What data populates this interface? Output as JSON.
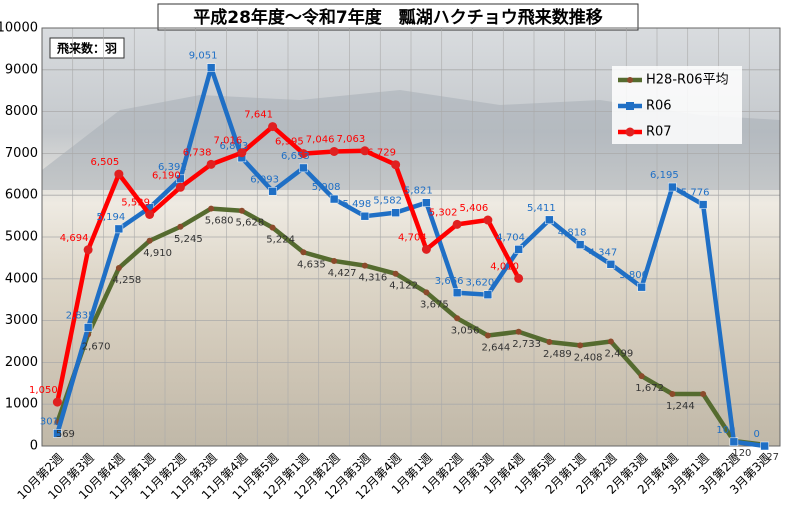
{
  "chart_data": {
    "type": "line",
    "title": "平成28年度～令和7年度　瓢湖ハクチョウ飛来数推移",
    "y_label": "飛来数：羽",
    "categories": [
      "10月第2週",
      "10月第3週",
      "10月第4週",
      "11月第1週",
      "11月第2週",
      "11月第3週",
      "11月第4週",
      "11月第5週",
      "12月第1週",
      "12月第2週",
      "12月第3週",
      "12月第4週",
      "1月第1週",
      "1月第2週",
      "1月第3週",
      "1月第4週",
      "1月第5週",
      "2月第1週",
      "2月第2週",
      "2月第3週",
      "2月第4週",
      "3月第1週",
      "3月第2週",
      "3月第3週"
    ],
    "ylim": [
      0,
      10000
    ],
    "yticks": [
      0,
      1000,
      2000,
      3000,
      4000,
      5000,
      6000,
      7000,
      8000,
      9000,
      10000
    ],
    "grid": true,
    "legend": "upper right",
    "series": [
      {
        "name": "H28-R06平均",
        "color": "#556b2f",
        "marker_color": "#8b4a2b",
        "values": [
          569,
          2670,
          4258,
          4910,
          5245,
          5680,
          5628,
          5224,
          4635,
          4427,
          4316,
          4122,
          3675,
          3056,
          2644,
          2733,
          2489,
          2408,
          2499,
          1672,
          1244,
          1244,
          120,
          27
        ],
        "value_labels": [
          "569",
          "2,670",
          "4,258",
          "4,910",
          "5,245",
          "5,680",
          "5,628",
          "5,224",
          "4,635",
          "4,427",
          "4,316",
          "4,122",
          "3,675",
          "3,056",
          "2,644",
          "2,733",
          "2,489",
          "2,408",
          "2,499",
          "1,672",
          "1,244",
          null,
          "120",
          "27"
        ]
      },
      {
        "name": "R06",
        "color": "#1f6fc5",
        "marker_color": "#1f6fc5",
        "values": [
          301,
          2835,
          5194,
          5700,
          6392,
          9051,
          6893,
          6093,
          6653,
          5908,
          5498,
          5582,
          5821,
          3666,
          3620,
          4704,
          5411,
          4818,
          4347,
          3800,
          6195,
          5776,
          100,
          0
        ],
        "value_labels": [
          "301",
          "2,835",
          "5,194",
          null,
          "6,392",
          "9,051",
          "6,893",
          "6,093",
          "6,653",
          "5,908",
          "5,498",
          "5,582",
          "5,821",
          "3,666",
          "3,620",
          "4,704",
          "5,411",
          "4,818",
          "4,347",
          "3,800",
          "6,195",
          "5,776",
          "100",
          "0"
        ]
      },
      {
        "name": "R07",
        "color": "#ff0000",
        "marker_color": "#e02020",
        "values": [
          1050,
          4694,
          6505,
          5539,
          6190,
          6738,
          7016,
          7641,
          6995,
          7046,
          7063,
          6729,
          4704,
          5302,
          5406,
          4010,
          null,
          null,
          null,
          null,
          null,
          null,
          null,
          null
        ],
        "value_labels": [
          "1,050",
          "4,694",
          "6,505",
          "5,539",
          "6,190",
          "6,738",
          "7,016",
          "7,641",
          "6,995",
          "7,046",
          "7,063",
          "6,729",
          "4,704",
          "5,302",
          "5,406",
          "4,010",
          null,
          null,
          null,
          null,
          null,
          null,
          null,
          null
        ]
      }
    ]
  }
}
